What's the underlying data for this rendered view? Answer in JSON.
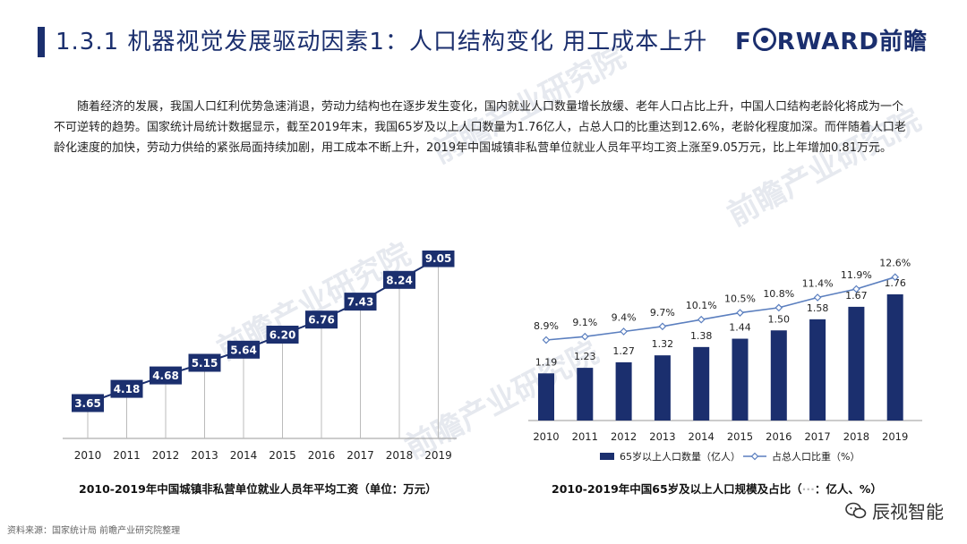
{
  "header": {
    "title": "1.3.1 机器视觉发展驱动因素1：人口结构变化 用工成本上升",
    "logo_text": "F",
    "logo_text2": "RWARD前瞻"
  },
  "body_text": "随着经济的发展，我国人口红利优势急速消退，劳动力结构也在逐步发生变化，国内就业人口数量增长放缓、老年人口占比上升，中国人口结构老龄化将成为一个不可逆转的趋势。国家统计局统计数据显示，截至2019年末，我国65岁及以上人口数量为1.76亿人，占总人口的比重达到12.6%，老龄化程度加深。而伴随着人口老龄化速度的加快，劳动力供给的紧张局面持续加剧，用工成本不断上升，2019年中国城镇非私营单位就业人员年平均工资上涨至9.05万元，比上年增加0.81万元。",
  "charts": {
    "left_caption": "2010-2019年中国城镇非私营单位就业人员年平均工资（单位：万元）",
    "right_caption": "2010-2019年中国65岁及以上人口规模及占比（",
    "right_caption_tail": "：亿人、%）"
  },
  "chart_data": [
    {
      "type": "line",
      "title": "2010-2019年中国城镇非私营单位就业人员年平均工资（单位：万元）",
      "categories": [
        "2010",
        "2011",
        "2012",
        "2013",
        "2014",
        "2015",
        "2016",
        "2017",
        "2018",
        "2019"
      ],
      "series": [
        {
          "values": [
            3.65,
            4.18,
            4.68,
            5.15,
            5.64,
            6.2,
            6.76,
            7.43,
            8.24,
            9.05
          ]
        }
      ],
      "value_labels": [
        "3.65",
        "4.18",
        "4.68",
        "5.15",
        "5.64",
        "6.20",
        "6.76",
        "7.43",
        "8.24",
        "9.05"
      ],
      "colors": {
        "line": "#1b2f6e",
        "label_bg": "#1b2f6e",
        "label_text": "#ffffff"
      }
    },
    {
      "type": "bar",
      "title": "2010-2019年中国65岁及以上人口规模及占比（…：亿人、%）",
      "categories": [
        "2010",
        "2011",
        "2012",
        "2013",
        "2014",
        "2015",
        "2016",
        "2017",
        "2018",
        "2019"
      ],
      "series": [
        {
          "name": "65岁以上人口数量（亿人）",
          "type": "bar",
          "values": [
            1.19,
            1.23,
            1.27,
            1.32,
            1.38,
            1.44,
            1.5,
            1.58,
            1.67,
            1.76
          ],
          "labels": [
            "1.19",
            "1.23",
            "1.27",
            "1.32",
            "1.38",
            "1.44",
            "1.50",
            "1.58",
            "1.67",
            "1.76"
          ],
          "color": "#1b2f6e"
        },
        {
          "name": "占总人口比重（%）",
          "type": "line",
          "values": [
            8.9,
            9.1,
            9.4,
            9.7,
            10.1,
            10.5,
            10.8,
            11.4,
            11.9,
            12.6
          ],
          "labels": [
            "8.9%",
            "9.1%",
            "9.4%",
            "9.7%",
            "10.1%",
            "10.5%",
            "10.8%",
            "11.4%",
            "11.9%",
            "12.6%"
          ],
          "color": "#5b7fbf"
        }
      ],
      "legend": "bottom"
    }
  ],
  "footer": {
    "source": "资料来源：国家统计局 前瞻产业研究院整理"
  },
  "wechat": {
    "label": "辰视智能",
    "icon": "wechat-icon"
  },
  "watermark": {
    "text": "前瞻产业研究院"
  }
}
